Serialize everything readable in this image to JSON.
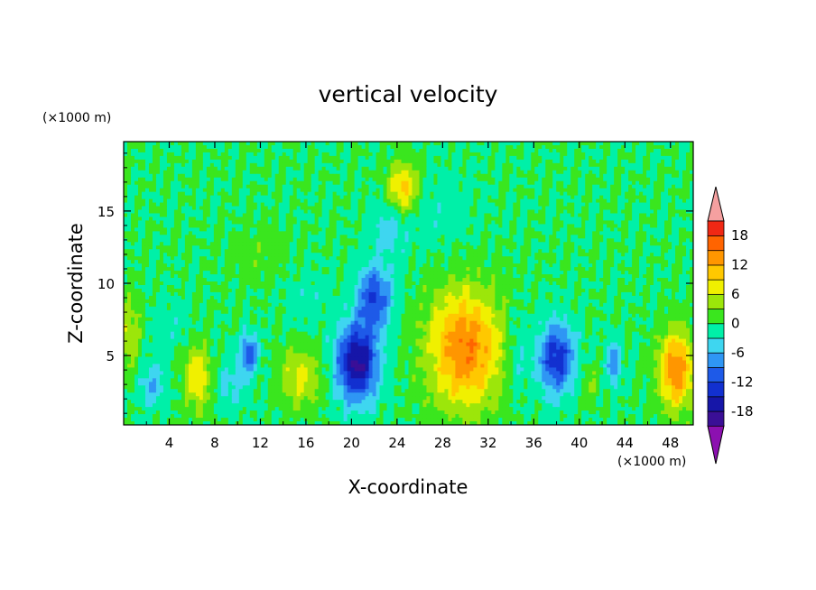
{
  "chart_data": {
    "type": "heatmap",
    "title": "vertical velocity",
    "xlabel": "X-coordinate",
    "ylabel": "Z-coordinate",
    "x_unit": "(×1000 m)",
    "y_unit": "(×1000 m)",
    "xlim": [
      0,
      50
    ],
    "ylim": [
      0.2,
      19.8
    ],
    "x_ticks": [
      "4",
      "8",
      "12",
      "16",
      "20",
      "24",
      "28",
      "32",
      "36",
      "40",
      "44",
      "48"
    ],
    "y_ticks": [
      "5",
      "10",
      "15"
    ],
    "colorbar": {
      "levels": [
        -21,
        -18,
        -15,
        -12,
        -9,
        -6,
        -3,
        0,
        3,
        6,
        9,
        12,
        15,
        18,
        21
      ],
      "labels": [
        "-18",
        "-12",
        "-6",
        "0",
        "6",
        "12",
        "18"
      ],
      "colors": [
        "#8c10b0",
        "#3a0f96",
        "#1616a8",
        "#1230d0",
        "#1e5ae8",
        "#2f96f4",
        "#3ed6f0",
        "#00f0a8",
        "#3ae61e",
        "#9ce60a",
        "#f0f000",
        "#ffc800",
        "#ff9600",
        "#ff6400",
        "#f02814",
        "#f5a0a0"
      ],
      "extend": "both"
    },
    "features": [
      {
        "x": 6.5,
        "z": 3.5,
        "sx": 1.2,
        "sz": 2.2,
        "amp": 9
      },
      {
        "x": 2.5,
        "z": 3.0,
        "sx": 1.2,
        "sz": 1.5,
        "amp": -6
      },
      {
        "x": 0.5,
        "z": 6.5,
        "sx": 1.0,
        "sz": 2.5,
        "amp": 6
      },
      {
        "x": 4.0,
        "z": 7.0,
        "sx": 2.0,
        "sz": 1.8,
        "amp": -2
      },
      {
        "x": 11.0,
        "z": 5.2,
        "sx": 0.8,
        "sz": 1.3,
        "amp": -11
      },
      {
        "x": 9.5,
        "z": 3.0,
        "sx": 1.5,
        "sz": 1.8,
        "amp": -4
      },
      {
        "x": 15.5,
        "z": 3.5,
        "sx": 1.8,
        "sz": 2.0,
        "amp": 7
      },
      {
        "x": 20.5,
        "z": 4.5,
        "sx": 1.8,
        "sz": 2.6,
        "amp": -19
      },
      {
        "x": 22.0,
        "z": 9.0,
        "sx": 1.5,
        "sz": 2.2,
        "amp": -12
      },
      {
        "x": 23.5,
        "z": 14.0,
        "sx": 1.6,
        "sz": 2.0,
        "amp": -5
      },
      {
        "x": 24.5,
        "z": 16.5,
        "sx": 1.3,
        "sz": 1.8,
        "amp": 11
      },
      {
        "x": 30.0,
        "z": 5.5,
        "sx": 3.2,
        "sz": 4.0,
        "amp": 15
      },
      {
        "x": 38.0,
        "z": 4.8,
        "sx": 1.6,
        "sz": 2.4,
        "amp": -14
      },
      {
        "x": 34.5,
        "z": 5.0,
        "sx": 1.0,
        "sz": 3.0,
        "amp": -4
      },
      {
        "x": 41.0,
        "z": 3.0,
        "sx": 0.8,
        "sz": 1.5,
        "amp": 3
      },
      {
        "x": 43.0,
        "z": 4.5,
        "sx": 0.6,
        "sz": 1.5,
        "amp": -9
      },
      {
        "x": 48.5,
        "z": 4.0,
        "sx": 1.5,
        "sz": 2.6,
        "amp": 15
      },
      {
        "x": 28.0,
        "z": 15.0,
        "sx": 3.0,
        "sz": 3.0,
        "amp": -2
      },
      {
        "x": 12.0,
        "z": 12.0,
        "sx": 2.5,
        "sz": 2.0,
        "amp": 2
      },
      {
        "x": 16.0,
        "z": 9.0,
        "sx": 2.0,
        "sz": 2.0,
        "amp": -2
      }
    ]
  }
}
